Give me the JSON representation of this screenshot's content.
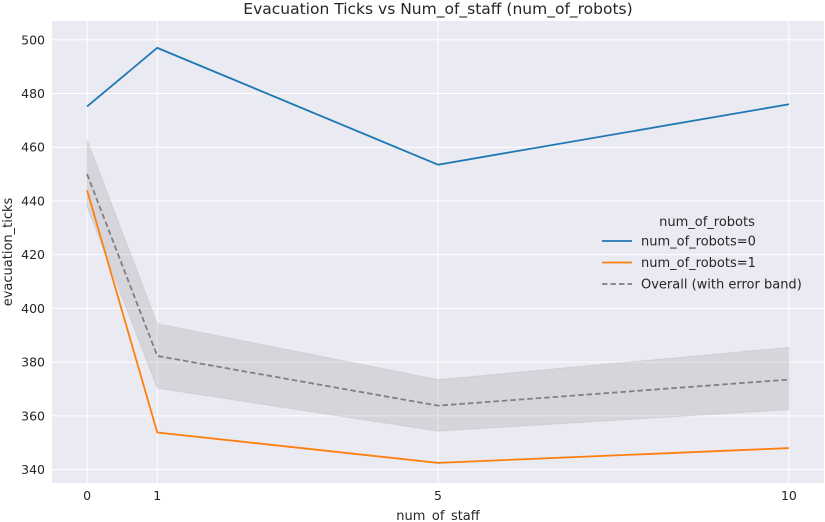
{
  "chart_data": {
    "type": "line",
    "title": "Evacuation Ticks vs Num_of_staff (num_of_robots)",
    "xlabel": "num_of_staff",
    "ylabel": "evacuation_ticks",
    "x": [
      0,
      1,
      5,
      10
    ],
    "xticks": [
      0,
      1,
      5,
      10
    ],
    "yticks": [
      340,
      360,
      380,
      400,
      420,
      440,
      460,
      480,
      500
    ],
    "xlim": [
      -0.5,
      10.5
    ],
    "ylim": [
      335,
      507
    ],
    "grid": true,
    "legend": {
      "title": "num_of_robots",
      "placement": "center-right"
    },
    "series": [
      {
        "name": "num_of_robots=0",
        "color": "#1f77b4",
        "style": "solid",
        "values": [
          475.2,
          497,
          453.5,
          476
        ]
      },
      {
        "name": "num_of_robots=1",
        "color": "#ff7f0e",
        "style": "solid",
        "values": [
          444,
          353.8,
          342.5,
          348
        ]
      },
      {
        "name": "Overall (with error band)",
        "color": "#808080",
        "style": "dashed",
        "values": [
          450,
          382.3,
          363.8,
          373.5
        ],
        "band_lower": [
          437.8,
          370.3,
          354.3,
          362.3
        ],
        "band_upper": [
          462.8,
          394.3,
          373.5,
          385.5
        ]
      }
    ]
  }
}
